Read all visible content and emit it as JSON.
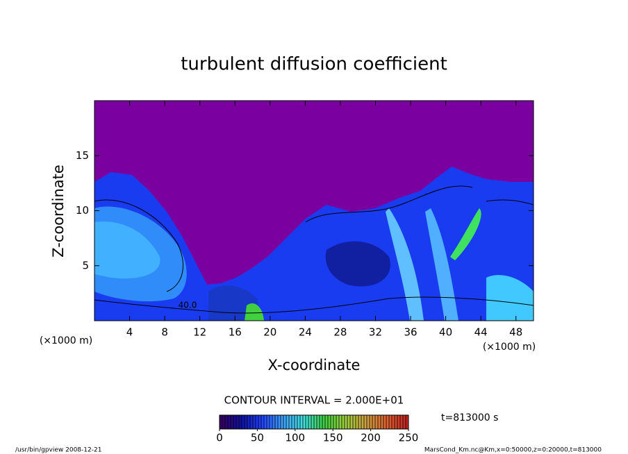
{
  "chart_data": {
    "type": "contour",
    "title": "turbulent diffusion coefficient",
    "x_label": "X-coordinate",
    "y_label": "Z-coordinate",
    "x_unit_label": "(×1000 m)",
    "y_unit_label": "(×1000 m)",
    "xlim": [
      0,
      50
    ],
    "ylim": [
      0,
      20
    ],
    "xticks": [
      4,
      8,
      12,
      16,
      20,
      24,
      28,
      32,
      36,
      40,
      44,
      48
    ],
    "yticks": [
      5,
      10,
      15
    ],
    "contour_label": "40.0",
    "contour_interval_label": "CONTOUR INTERVAL = 2.000E+01",
    "time_label": "t=813000 s",
    "colorbar": {
      "lim": [
        0,
        250
      ],
      "ticks": [
        0,
        50,
        100,
        150,
        200,
        250
      ],
      "colors": [
        "#3a0060",
        "#1010a0",
        "#2040ff",
        "#40a0ff",
        "#40e0e0",
        "#40d040",
        "#a0d040",
        "#d0a040",
        "#e06030",
        "#c02020"
      ]
    }
  },
  "footer": {
    "left": "/usr/bin/gpview   2008-12-21",
    "right": "MarsCond_Km.nc@Km,x=0:50000,z=0:20000,t=813000"
  }
}
